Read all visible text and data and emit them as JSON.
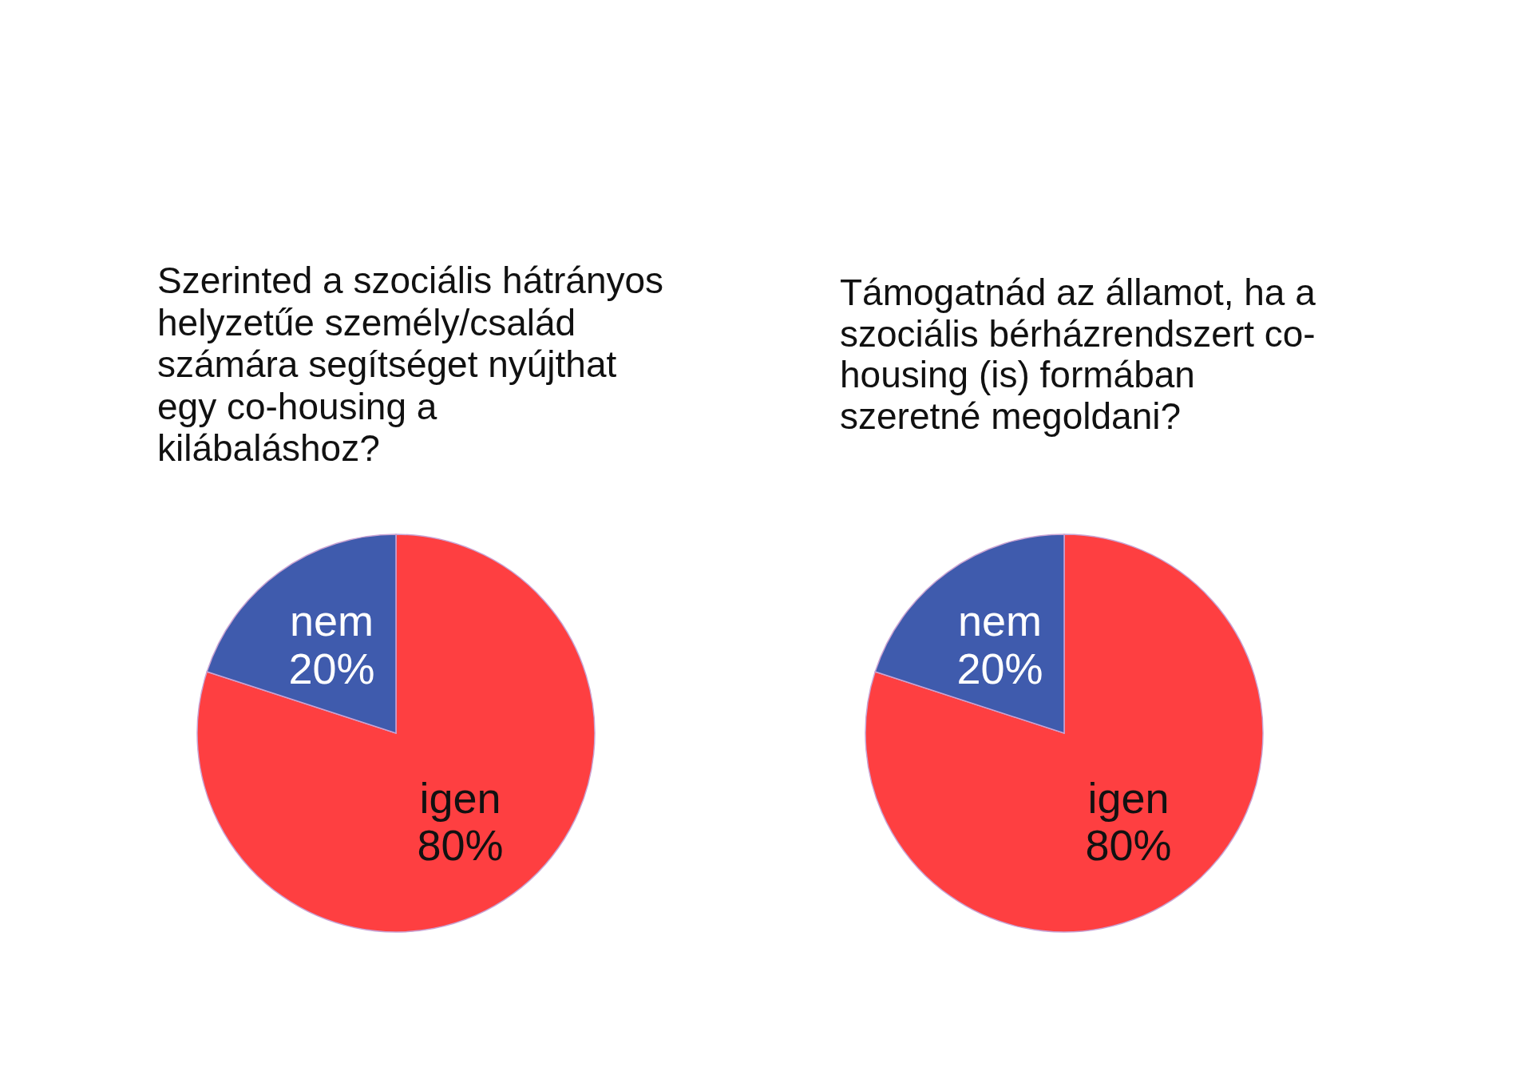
{
  "chart_data": [
    {
      "type": "pie",
      "title": "Szerinted a szociális hátrányos helyzetűe személy/család számára segítséget nyújthat egy co-housing a kilábaláshoz?",
      "categories": [
        "igen",
        "nem"
      ],
      "values": [
        80,
        20
      ],
      "colors": [
        "#fe3f41",
        "#3f5bad"
      ],
      "value_labels": [
        "80%",
        "20%"
      ]
    },
    {
      "type": "pie",
      "title": "Támogatnád az államot, ha a szociális bérházrendszert co-housing (is) formában szeretné megoldani?",
      "categories": [
        "igen",
        "nem"
      ],
      "values": [
        80,
        20
      ],
      "colors": [
        "#fe3f41",
        "#3f5bad"
      ],
      "value_labels": [
        "80%",
        "20%"
      ]
    }
  ]
}
